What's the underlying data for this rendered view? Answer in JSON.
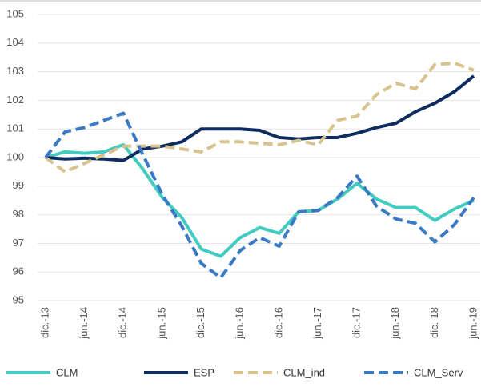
{
  "chart_data": {
    "type": "line",
    "categories": [
      "dic.-13",
      null,
      "jun.-14",
      null,
      "dic.-14",
      null,
      "jun.-15",
      null,
      "dic.-15",
      null,
      "jun.-16",
      null,
      "dic.-16",
      null,
      "jun.-17",
      null,
      "dic.-17",
      null,
      "jun.-18",
      null,
      "dic.-18",
      null,
      "jun.-19"
    ],
    "series": [
      {
        "name": "CLM",
        "color": "#41cbc1",
        "dashed": false,
        "values": [
          100,
          100.2,
          100.15,
          100.2,
          100.45,
          99.6,
          98.6,
          97.9,
          96.8,
          96.55,
          97.2,
          97.55,
          97.35,
          98.1,
          98.15,
          98.55,
          99.1,
          98.55,
          98.25,
          98.25,
          97.8,
          98.2,
          98.5
        ]
      },
      {
        "name": "ESP",
        "color": "#0e2c5f",
        "dashed": false,
        "values": [
          100,
          99.95,
          99.98,
          99.95,
          99.9,
          100.3,
          100.4,
          100.55,
          101.0,
          101.0,
          101.0,
          100.95,
          100.7,
          100.65,
          100.7,
          100.7,
          100.85,
          101.05,
          101.2,
          101.6,
          101.9,
          102.3,
          102.85
        ]
      },
      {
        "name": "CLM_ind",
        "color": "#d8c38e",
        "dashed": true,
        "values": [
          100,
          99.5,
          99.8,
          100.1,
          100.4,
          100.4,
          100.4,
          100.3,
          100.2,
          100.55,
          100.55,
          100.5,
          100.45,
          100.6,
          100.45,
          101.3,
          101.45,
          102.2,
          102.6,
          102.4,
          103.25,
          103.3,
          103.05
        ]
      },
      {
        "name": "CLM_Serv",
        "color": "#3a79c3",
        "dashed": true,
        "values": [
          100,
          100.9,
          101.05,
          101.3,
          101.55,
          100.1,
          98.7,
          97.6,
          96.3,
          95.8,
          96.75,
          97.2,
          96.9,
          98.1,
          98.15,
          98.6,
          99.35,
          98.3,
          97.85,
          97.7,
          97.05,
          97.65,
          98.6
        ]
      }
    ],
    "ylim": [
      95,
      105
    ],
    "yticks": [
      95,
      96,
      97,
      98,
      99,
      100,
      101,
      102,
      103,
      104,
      105
    ],
    "grid": true,
    "legend": "bottom"
  }
}
